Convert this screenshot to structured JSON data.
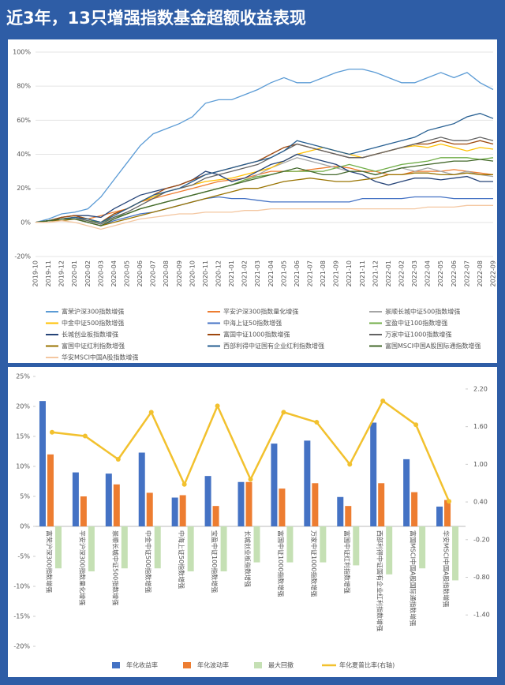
{
  "title": "近3年，13只增强指数基金超额收益表现",
  "chart_data": [
    {
      "type": "line",
      "x": [
        "2019-10",
        "2019-11",
        "2019-12",
        "2020-01",
        "2020-02",
        "2020-03",
        "2020-04",
        "2020-05",
        "2020-06",
        "2020-07",
        "2020-08",
        "2020-09",
        "2020-10",
        "2020-11",
        "2020-12",
        "2021-01",
        "2021-02",
        "2021-03",
        "2021-04",
        "2021-05",
        "2021-06",
        "2021-07",
        "2021-08",
        "2021-09",
        "2021-10",
        "2021-11",
        "2021-12",
        "2022-01",
        "2022-02",
        "2022-03",
        "2022-04",
        "2022-05",
        "2022-06",
        "2022-07",
        "2022-08",
        "2022-09"
      ],
      "ylim": [
        -20,
        100
      ],
      "yticks": [
        {
          "value": -20,
          "label": "-20%"
        },
        {
          "value": 0,
          "label": "0%"
        },
        {
          "value": 20,
          "label": "20%"
        },
        {
          "value": 40,
          "label": "40%"
        },
        {
          "value": 60,
          "label": "60%"
        },
        {
          "value": 80,
          "label": "80%"
        },
        {
          "value": 100,
          "label": "100%"
        }
      ],
      "series": [
        {
          "name": "富荣沪深300指数增强",
          "color": "#5b9bd5",
          "values": [
            0,
            2,
            5,
            6,
            8,
            15,
            25,
            35,
            45,
            52,
            55,
            58,
            62,
            70,
            72,
            72,
            75,
            78,
            82,
            85,
            82,
            82,
            85,
            88,
            90,
            90,
            88,
            85,
            82,
            82,
            85,
            88,
            85,
            88,
            82,
            78
          ]
        },
        {
          "name": "平安沪深300指数量化增强",
          "color": "#ed7d31",
          "values": [
            0,
            1,
            2,
            3,
            2,
            4,
            6,
            8,
            12,
            14,
            16,
            18,
            20,
            22,
            24,
            25,
            26,
            28,
            30,
            30,
            30,
            31,
            32,
            33,
            32,
            30,
            30,
            28,
            28,
            30,
            30,
            30,
            31,
            30,
            29,
            28
          ]
        },
        {
          "name": "景顺长城中证500指数增强",
          "color": "#a5a5a5",
          "values": [
            0,
            1,
            2,
            3,
            0,
            -2,
            2,
            5,
            8,
            10,
            12,
            14,
            16,
            18,
            20,
            22,
            24,
            28,
            32,
            35,
            38,
            36,
            34,
            32,
            30,
            30,
            28,
            30,
            32,
            30,
            32,
            30,
            28,
            30,
            28,
            27
          ]
        },
        {
          "name": "中金中证500指数增强",
          "color": "#ffc000",
          "values": [
            0,
            1,
            3,
            4,
            2,
            0,
            5,
            8,
            12,
            15,
            18,
            20,
            22,
            24,
            25,
            26,
            28,
            30,
            32,
            36,
            40,
            42,
            44,
            42,
            40,
            38,
            40,
            42,
            44,
            45,
            44,
            46,
            44,
            42,
            44,
            43
          ]
        },
        {
          "name": "中海上证50指数增强",
          "color": "#4472c4",
          "values": [
            0,
            1,
            2,
            2,
            0,
            -2,
            1,
            3,
            5,
            6,
            8,
            10,
            12,
            14,
            15,
            14,
            14,
            13,
            12,
            12,
            12,
            12,
            12,
            12,
            12,
            14,
            14,
            14,
            14,
            15,
            15,
            15,
            14,
            14,
            14,
            14
          ]
        },
        {
          "name": "宝盈中证100指数增强",
          "color": "#70ad47",
          "values": [
            0,
            1,
            2,
            3,
            1,
            0,
            3,
            5,
            8,
            10,
            12,
            14,
            16,
            18,
            20,
            22,
            25,
            27,
            28,
            30,
            30,
            30,
            30,
            32,
            34,
            32,
            30,
            32,
            34,
            35,
            36,
            38,
            38,
            38,
            37,
            38
          ]
        },
        {
          "name": "长城创业板指数增强",
          "color": "#264478",
          "values": [
            0,
            1,
            3,
            4,
            4,
            3,
            8,
            12,
            16,
            18,
            20,
            22,
            25,
            30,
            28,
            24,
            26,
            30,
            34,
            36,
            40,
            38,
            36,
            34,
            30,
            28,
            24,
            22,
            24,
            26,
            26,
            25,
            26,
            27,
            24,
            24
          ]
        },
        {
          "name": "富国中证1000指数增强",
          "color": "#9e480e",
          "values": [
            0,
            1,
            3,
            4,
            2,
            0,
            5,
            8,
            12,
            16,
            20,
            22,
            25,
            28,
            30,
            32,
            34,
            36,
            40,
            44,
            46,
            44,
            42,
            40,
            38,
            38,
            40,
            42,
            44,
            46,
            46,
            48,
            46,
            46,
            48,
            46
          ]
        },
        {
          "name": "万家中证1000指数增强",
          "color": "#636363",
          "values": [
            0,
            1,
            2,
            3,
            1,
            -1,
            3,
            6,
            10,
            14,
            18,
            20,
            22,
            26,
            28,
            30,
            32,
            34,
            38,
            42,
            46,
            44,
            42,
            40,
            38,
            38,
            40,
            42,
            44,
            46,
            48,
            50,
            48,
            48,
            50,
            48
          ]
        },
        {
          "name": "富国中证红利指数增强",
          "color": "#997300",
          "values": [
            0,
            1,
            1,
            2,
            0,
            -2,
            0,
            2,
            4,
            6,
            8,
            10,
            12,
            14,
            16,
            18,
            20,
            20,
            22,
            24,
            25,
            26,
            25,
            24,
            24,
            25,
            26,
            28,
            28,
            29,
            29,
            28,
            28,
            29,
            28,
            28
          ]
        },
        {
          "name": "西部利得中证国有企业红利指数增强",
          "color": "#255e91",
          "values": [
            0,
            1,
            2,
            3,
            2,
            0,
            4,
            8,
            12,
            16,
            18,
            20,
            24,
            28,
            30,
            32,
            34,
            36,
            38,
            42,
            48,
            46,
            44,
            42,
            40,
            42,
            44,
            46,
            48,
            50,
            54,
            56,
            58,
            62,
            64,
            61
          ]
        },
        {
          "name": "富国MSCI中国A股国际通指数增强",
          "color": "#43682b",
          "values": [
            0,
            1,
            2,
            2,
            0,
            -2,
            2,
            5,
            8,
            10,
            12,
            14,
            16,
            18,
            20,
            22,
            24,
            26,
            28,
            30,
            32,
            30,
            28,
            28,
            30,
            30,
            28,
            30,
            32,
            33,
            34,
            35,
            36,
            36,
            37,
            36
          ]
        },
        {
          "name": "华安MSCI中国A股指数增强",
          "color": "#f4c7a1",
          "values": [
            0,
            0,
            1,
            0,
            -2,
            -4,
            -2,
            0,
            2,
            3,
            4,
            5,
            5,
            6,
            6,
            6,
            7,
            7,
            8,
            8,
            8,
            8,
            8,
            8,
            8,
            8,
            8,
            8,
            8,
            8,
            9,
            9,
            9,
            10,
            10,
            10
          ]
        }
      ]
    },
    {
      "type": "bar",
      "categories": [
        "富荣沪深300指数增强",
        "平安沪深300指数量化增强",
        "景顺长城中证500指数增强",
        "中金中证500指数增强",
        "中海上证50指数增强",
        "宝盈中证100指数增强",
        "长城创业板指数增强",
        "富国中证1000指数增强",
        "万家中证1000指数增强",
        "富国中证红利指数增强",
        "西部利得中证国有企业红利指数增强",
        "富国MSCI中国A股国际通指数增强",
        "华安MSCI中国A股指数增强"
      ],
      "ylim": [
        -20,
        25
      ],
      "yticks": [
        {
          "value": -20,
          "label": "-20%"
        },
        {
          "value": -15,
          "label": "-15%"
        },
        {
          "value": -10,
          "label": "-10%"
        },
        {
          "value": -5,
          "label": "-5%"
        },
        {
          "value": 0,
          "label": "0%"
        },
        {
          "value": 5,
          "label": "5%"
        },
        {
          "value": 10,
          "label": "10%"
        },
        {
          "value": 15,
          "label": "15%"
        },
        {
          "value": 20,
          "label": "20%"
        },
        {
          "value": 25,
          "label": "25%"
        }
      ],
      "y2lim": [
        -1.9,
        2.4
      ],
      "y2ticks": [
        {
          "value": -1.4,
          "label": "-1.40"
        },
        {
          "value": -0.8,
          "label": "-0.80"
        },
        {
          "value": -0.2,
          "label": "-0.20"
        },
        {
          "value": 0.4,
          "label": "0.40"
        },
        {
          "value": 1,
          "label": "1.00"
        },
        {
          "value": 1.6,
          "label": "1.60"
        },
        {
          "value": 2.2,
          "label": "2.20"
        }
      ],
      "series": [
        {
          "name": "年化收益率",
          "color": "#4472c4",
          "values": [
            20.9,
            9.0,
            8.8,
            12.3,
            4.8,
            8.4,
            7.4,
            13.8,
            14.3,
            4.9,
            17.3,
            11.2,
            3.3
          ]
        },
        {
          "name": "年化波动率",
          "color": "#ed7d31",
          "values": [
            12.0,
            5.0,
            7.0,
            5.6,
            5.2,
            3.4,
            7.4,
            6.3,
            7.2,
            3.4,
            7.2,
            5.7,
            4.4
          ]
        },
        {
          "name": "最大回撤",
          "color": "#c5e0b4",
          "values": [
            -7,
            -7.5,
            -7,
            -7,
            -7.5,
            -7.5,
            -6,
            -6,
            -6,
            -6.5,
            -8,
            -7,
            -9
          ]
        },
        {
          "name": "年化夏普比率(右轴)",
          "color": "#f2c12e",
          "axis": "y2",
          "values": [
            1.51,
            1.45,
            1.08,
            1.83,
            0.68,
            1.93,
            0.76,
            1.83,
            1.67,
            1.0,
            2.01,
            1.63,
            0.41
          ]
        }
      ]
    }
  ]
}
